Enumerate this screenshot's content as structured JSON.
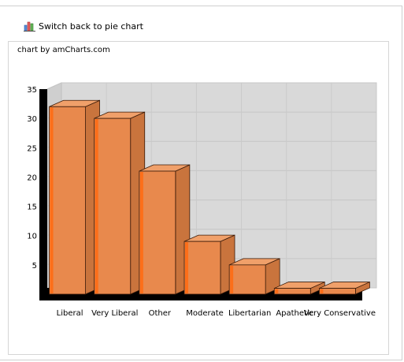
{
  "toggle": {
    "label": "Switch back to pie chart",
    "icon": "bar-chart-icon"
  },
  "credit": "chart by amCharts.com",
  "colors": {
    "bar_front": "#e8894d",
    "bar_side": "#c9743d",
    "bar_top": "#f0a06a",
    "bar_edge": "#ff6a10",
    "plot_back": "#d9d9d9",
    "plot_floor": "#000000"
  },
  "chart_data": {
    "type": "bar",
    "categories": [
      "Liberal",
      "Very Liberal",
      "Other",
      "Moderate",
      "Libertarian",
      "Apathetic",
      "Very Conservative"
    ],
    "values": [
      32,
      30,
      21,
      9,
      5,
      1,
      1
    ],
    "ylim": [
      0,
      35
    ],
    "yticks": [
      5,
      10,
      15,
      20,
      25,
      30,
      35
    ],
    "grid": true,
    "style": "3d",
    "title": "",
    "xlabel": "",
    "ylabel": ""
  }
}
